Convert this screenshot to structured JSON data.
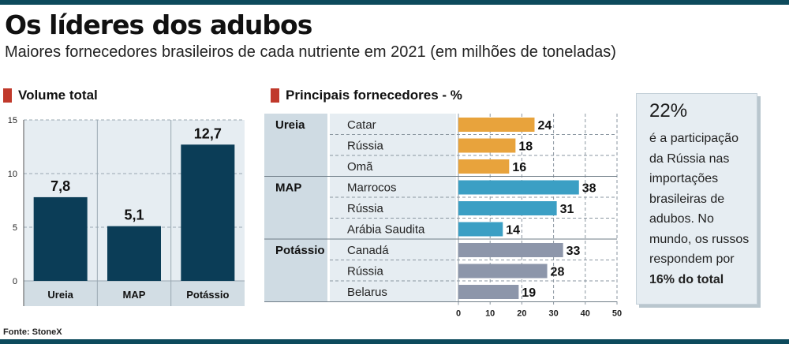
{
  "header": {
    "title": "Os líderes dos adubos",
    "subtitle": "Maiores fornecedores brasileiros de cada nutriente em 2021 (em milhões de toneladas)"
  },
  "left_section": {
    "label": "Volume total"
  },
  "right_section": {
    "label": "Principais fornecedores - %"
  },
  "callout": {
    "percentage": "22%",
    "text": "é a participação da Rússia nas importações brasileiras de adubos. No mundo, os russos respondem por",
    "emphasis": "16% do total"
  },
  "source": "Fonte: StoneX",
  "colors": {
    "rule": "#0d4a5c",
    "marker": "#c0392b",
    "volume_bar": "#0b3d57",
    "ureia": "#e8a33c",
    "map": "#3b9fc4",
    "potassio": "#8d96aa",
    "panel_bg": "#e6edf2"
  },
  "chart_data": [
    {
      "type": "bar",
      "categories": [
        "Ureia",
        "MAP",
        "Potássio"
      ],
      "values": [
        7.8,
        5.1,
        12.7
      ],
      "value_labels": [
        "7,8",
        "5,1",
        "12,7"
      ],
      "ylim": [
        0,
        15
      ],
      "yticks": [
        0,
        5,
        10,
        15
      ],
      "grid": true
    },
    {
      "type": "bar",
      "orientation": "horizontal",
      "groups": [
        {
          "name": "Ureia",
          "color_key": "ureia",
          "items": [
            {
              "label": "Catar",
              "value": 24
            },
            {
              "label": "Rússia",
              "value": 18
            },
            {
              "label": "Omã",
              "value": 16
            }
          ]
        },
        {
          "name": "MAP",
          "color_key": "map",
          "items": [
            {
              "label": "Marrocos",
              "value": 38
            },
            {
              "label": "Rússia",
              "value": 31
            },
            {
              "label": "Arábia Saudita",
              "value": 14
            }
          ]
        },
        {
          "name": "Potássio",
          "color_key": "potassio",
          "items": [
            {
              "label": "Canadá",
              "value": 33
            },
            {
              "label": "Rússia",
              "value": 28
            },
            {
              "label": "Belarus",
              "value": 19
            }
          ]
        }
      ],
      "xlim": [
        0,
        50
      ],
      "xticks": [
        0,
        10,
        20,
        30,
        40,
        50
      ],
      "grid": true
    }
  ]
}
